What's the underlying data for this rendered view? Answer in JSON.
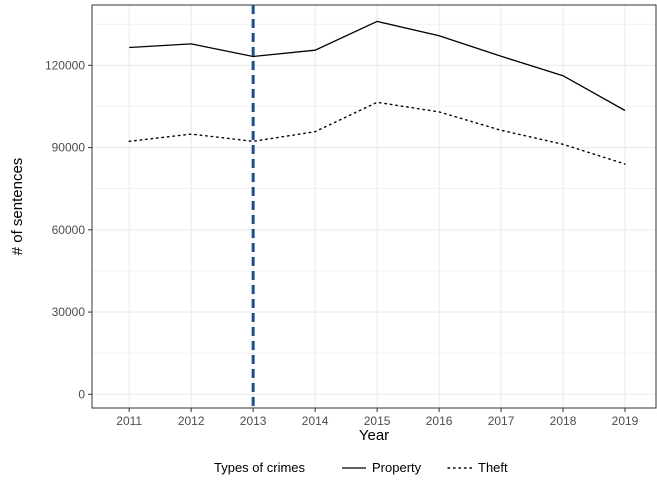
{
  "chart_data": {
    "type": "line",
    "title": "",
    "xlabel": "Year",
    "ylabel": "# of sentences",
    "x": [
      2011,
      2012,
      2013,
      2014,
      2015,
      2016,
      2017,
      2018,
      2019
    ],
    "xlim": [
      2010.4,
      2019.5
    ],
    "ylim": [
      -5000,
      142000
    ],
    "yticks": [
      0,
      30000,
      60000,
      90000,
      120000
    ],
    "series": [
      {
        "name": "Property",
        "line_style": "solid",
        "values": [
          126500,
          127800,
          123200,
          125500,
          136000,
          130800,
          123300,
          116200,
          103500
        ]
      },
      {
        "name": "Theft",
        "line_style": "dotted",
        "values": [
          92300,
          94900,
          92300,
          95800,
          106500,
          103000,
          96300,
          91200,
          84000
        ]
      }
    ],
    "vline": {
      "x": 2013,
      "color": "#1f4e8c",
      "style": "dashed"
    },
    "legend": {
      "title": "Types of crimes",
      "position": "bottom"
    },
    "grid": true,
    "colors": {
      "line": "#000000",
      "grid": "#ebebeb",
      "vline": "#1f4e8c"
    }
  }
}
